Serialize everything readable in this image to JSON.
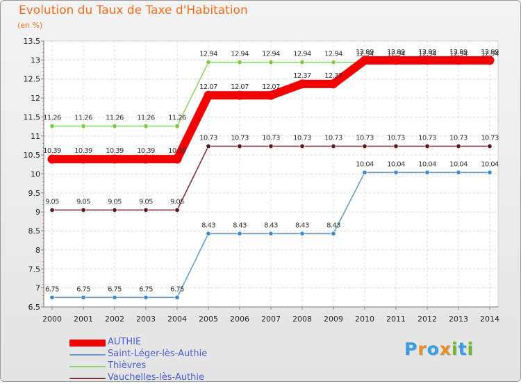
{
  "title": "Evolution du Taux de Taxe d'Habitation",
  "unit": "(en %)",
  "logo": "Proxiti",
  "chart_data": {
    "type": "line",
    "title": "Evolution du Taux de Taxe d'Habitation",
    "ylabel": "(en %)",
    "xlabel": "",
    "ylim": [
      6.5,
      13.5
    ],
    "yticks": [
      "6.5",
      "7",
      "7.5",
      "8",
      "8.5",
      "9",
      "9.5",
      "10",
      "10.5",
      "11",
      "11.5",
      "12",
      "12.5",
      "13",
      "13.5"
    ],
    "categories": [
      "2000",
      "2001",
      "2002",
      "2003",
      "2004",
      "2005",
      "2006",
      "2007",
      "2008",
      "2009",
      "2010",
      "2011",
      "2012",
      "2013",
      "2014"
    ],
    "grid": true,
    "legend": "bottom-left",
    "series": [
      {
        "name": "Saint-Léger-lès-Authie",
        "color": "#6a9bc8",
        "values": [
          6.75,
          6.75,
          6.75,
          6.75,
          6.75,
          8.43,
          8.43,
          8.43,
          8.43,
          8.43,
          10.04,
          10.04,
          10.04,
          10.04,
          10.04
        ],
        "labels": [
          "6.75",
          "6.75",
          "6.75",
          "6.75",
          "6.75",
          "8.43",
          "8.43",
          "8.43",
          "8.43",
          "8.43",
          "10.04",
          "10.04",
          "10.04",
          "10.04",
          "10.04"
        ]
      },
      {
        "name": "Vauchelles-lès-Authie",
        "color": "#7a3038",
        "values": [
          9.05,
          9.05,
          9.05,
          9.05,
          9.05,
          10.73,
          10.73,
          10.73,
          10.73,
          10.73,
          10.73,
          10.73,
          10.73,
          10.73,
          10.73
        ],
        "labels": [
          "9.05",
          "9.05",
          "9.05",
          "9.05",
          "9.05",
          "10.73",
          "10.73",
          "10.73",
          "10.73",
          "10.73",
          "10.73",
          "10.73",
          "10.73",
          "10.73",
          "10.73"
        ]
      },
      {
        "name": "Thièvres",
        "color": "#8fd36a",
        "values": [
          11.26,
          11.26,
          11.26,
          11.26,
          11.26,
          12.94,
          12.94,
          12.94,
          12.94,
          12.94,
          12.94,
          12.94,
          12.94,
          12.94,
          12.94
        ],
        "labels": [
          "11.26",
          "11.26",
          "11.26",
          "11.26",
          "11.26",
          "12.94",
          "12.94",
          "12.94",
          "12.94",
          "12.94",
          "12.94",
          "12.94",
          "12.94",
          "12.94",
          "12.94"
        ]
      },
      {
        "name": "AUTHIE",
        "color": "#f20000",
        "values": [
          10.39,
          10.39,
          10.39,
          10.39,
          10.39,
          12.07,
          12.07,
          12.07,
          12.37,
          12.37,
          12.99,
          12.99,
          12.99,
          12.99,
          12.99
        ],
        "labels": [
          "10.39",
          "10.39",
          "10.39",
          "10.39",
          "10.39",
          "12.07",
          "12.07",
          "12.07",
          "12.37",
          "12.37",
          "12.99",
          "12.99",
          "12.99",
          "12.99",
          "12.99"
        ]
      }
    ]
  },
  "legend": [
    {
      "label": "AUTHIE",
      "color": "#f20000"
    },
    {
      "label": "Saint-Léger-lès-Authie",
      "color": "#6a9bc8"
    },
    {
      "label": "Thièvres",
      "color": "#8fd36a"
    },
    {
      "label": "Vauchelles-lès-Authie",
      "color": "#7a3038"
    }
  ]
}
